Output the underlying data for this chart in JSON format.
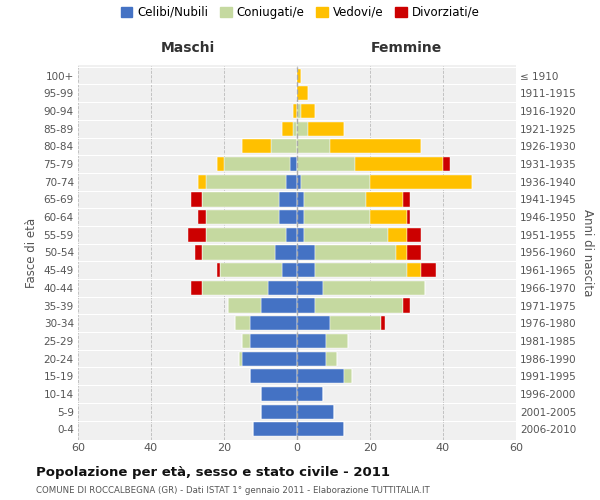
{
  "age_groups": [
    "0-4",
    "5-9",
    "10-14",
    "15-19",
    "20-24",
    "25-29",
    "30-34",
    "35-39",
    "40-44",
    "45-49",
    "50-54",
    "55-59",
    "60-64",
    "65-69",
    "70-74",
    "75-79",
    "80-84",
    "85-89",
    "90-94",
    "95-99",
    "100+"
  ],
  "birth_years": [
    "2006-2010",
    "2001-2005",
    "1996-2000",
    "1991-1995",
    "1986-1990",
    "1981-1985",
    "1976-1980",
    "1971-1975",
    "1966-1970",
    "1961-1965",
    "1956-1960",
    "1951-1955",
    "1946-1950",
    "1941-1945",
    "1936-1940",
    "1931-1935",
    "1926-1930",
    "1921-1925",
    "1916-1920",
    "1911-1915",
    "≤ 1910"
  ],
  "males": {
    "celibi": [
      12,
      10,
      10,
      13,
      15,
      13,
      13,
      10,
      8,
      4,
      6,
      3,
      5,
      5,
      3,
      2,
      0,
      0,
      0,
      0,
      0
    ],
    "coniugati": [
      0,
      0,
      0,
      0,
      1,
      2,
      4,
      9,
      18,
      17,
      20,
      22,
      20,
      21,
      22,
      18,
      7,
      1,
      0,
      0,
      0
    ],
    "vedovi": [
      0,
      0,
      0,
      0,
      0,
      0,
      0,
      0,
      0,
      0,
      0,
      0,
      0,
      0,
      2,
      2,
      8,
      3,
      1,
      0,
      0
    ],
    "divorziati": [
      0,
      0,
      0,
      0,
      0,
      0,
      0,
      0,
      3,
      1,
      2,
      5,
      2,
      3,
      0,
      0,
      0,
      0,
      0,
      0,
      0
    ]
  },
  "females": {
    "nubili": [
      13,
      10,
      7,
      13,
      8,
      8,
      9,
      5,
      7,
      5,
      5,
      2,
      2,
      2,
      1,
      0,
      0,
      0,
      0,
      0,
      0
    ],
    "coniugate": [
      0,
      0,
      0,
      2,
      3,
      6,
      14,
      24,
      28,
      25,
      22,
      23,
      18,
      17,
      19,
      16,
      9,
      3,
      1,
      0,
      0
    ],
    "vedove": [
      0,
      0,
      0,
      0,
      0,
      0,
      0,
      0,
      0,
      4,
      3,
      5,
      10,
      10,
      28,
      24,
      25,
      10,
      4,
      3,
      1
    ],
    "divorziate": [
      0,
      0,
      0,
      0,
      0,
      0,
      1,
      2,
      0,
      4,
      4,
      4,
      1,
      2,
      0,
      2,
      0,
      0,
      0,
      0,
      0
    ]
  },
  "colors": {
    "celibi": "#4472c4",
    "coniugati": "#c5d9a0",
    "vedovi": "#ffc000",
    "divorziati": "#cc0000"
  },
  "title": "Popolazione per età, sesso e stato civile - 2011",
  "subtitle": "COMUNE DI ROCCALBEGNA (GR) - Dati ISTAT 1° gennaio 2011 - Elaborazione TUTTITALIA.IT",
  "xlabel_left": "Maschi",
  "xlabel_right": "Femmine",
  "ylabel_left": "Fasce di età",
  "ylabel_right": "Anni di nascita",
  "xlim": 60,
  "bg_color": "#ffffff",
  "plot_bg_color": "#f0f0f0",
  "grid_color": "#bbbbbb",
  "legend_labels": [
    "Celibi/Nubili",
    "Coniugati/e",
    "Vedovi/e",
    "Divorziati/e"
  ]
}
